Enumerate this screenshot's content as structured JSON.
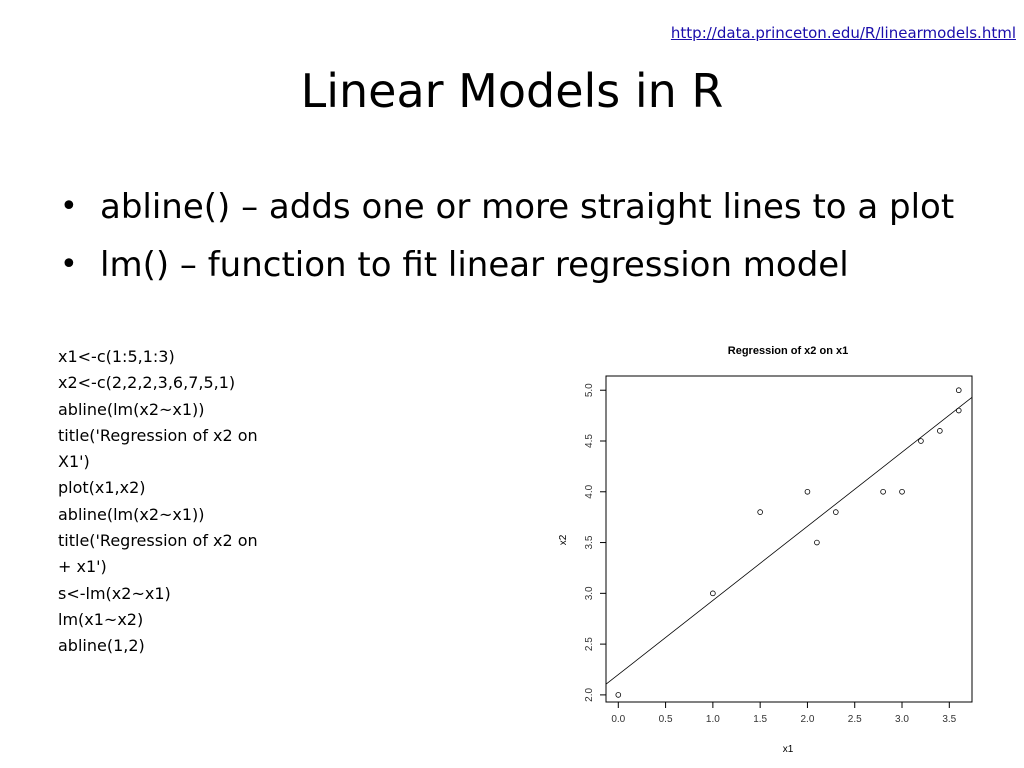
{
  "header": {
    "source_link": "http://data.princeton.edu/R/linearmodels.html",
    "title": "Linear Models in R"
  },
  "bullets": [
    {
      "text": "abline() – adds one or more straight lines to a plot"
    },
    {
      "text": "lm() – function to fit linear regression model"
    }
  ],
  "code_lines": [
    " x1<-c(1:5,1:3)",
    " x2<-c(2,2,2,3,6,7,5,1)",
    "abline(lm(x2~x1))",
    "title('Regression of x2 on",
    "X1')",
    "plot(x1,x2)",
    "abline(lm(x2~x1))",
    " title('Regression of x2 on",
    "+ x1')",
    "s<-lm(x2~x1)",
    " lm(x1~x2)",
    "abline(1,2)"
  ],
  "chart_data": {
    "type": "scatter",
    "title": "Regression of x2 on x1",
    "xlabel": "x1",
    "ylabel": "x2",
    "xlim": [
      -0.13,
      3.74
    ],
    "ylim": [
      1.93,
      5.14
    ],
    "xticks": [
      "0.0",
      "0.5",
      "1.0",
      "1.5",
      "2.0",
      "2.5",
      "3.0",
      "3.5"
    ],
    "yticks": [
      "2.0",
      "2.5",
      "3.0",
      "3.5",
      "4.0",
      "4.5",
      "5.0"
    ],
    "grid": false,
    "points": [
      {
        "x": 0.0,
        "y": 2.0
      },
      {
        "x": 1.0,
        "y": 3.0
      },
      {
        "x": 1.5,
        "y": 3.8
      },
      {
        "x": 2.0,
        "y": 4.0
      },
      {
        "x": 2.1,
        "y": 3.5
      },
      {
        "x": 2.3,
        "y": 3.8
      },
      {
        "x": 2.8,
        "y": 4.0
      },
      {
        "x": 3.0,
        "y": 4.0
      },
      {
        "x": 3.2,
        "y": 4.5
      },
      {
        "x": 3.4,
        "y": 4.6
      },
      {
        "x": 3.6,
        "y": 4.8
      },
      {
        "x": 3.6,
        "y": 5.0
      }
    ],
    "regression_line": {
      "intercept": 2.2,
      "slope": 0.73
    }
  }
}
